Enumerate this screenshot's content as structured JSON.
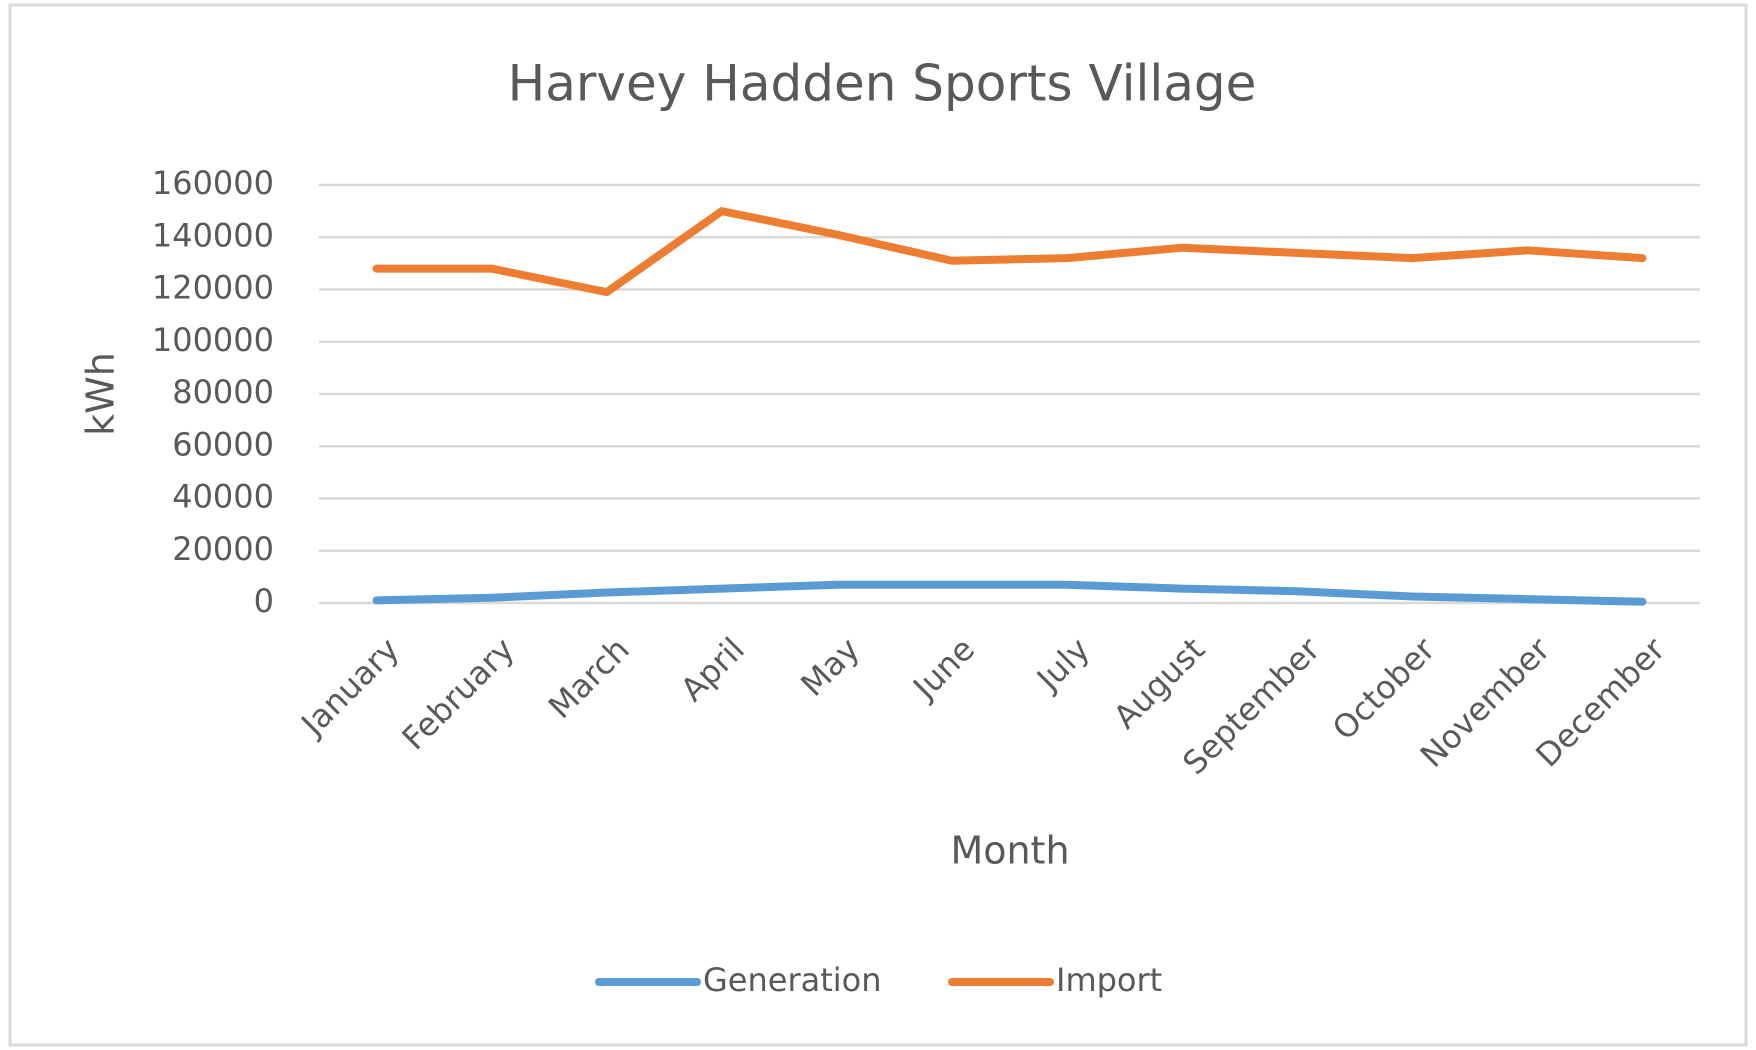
{
  "chart_data": {
    "type": "line",
    "title": "Harvey Hadden Sports Village",
    "x_label": "Month",
    "y_label": "kWh",
    "categories": [
      "January",
      "February",
      "March",
      "April",
      "May",
      "June",
      "July",
      "August",
      "September",
      "October",
      "November",
      "December"
    ],
    "series": [
      {
        "name": "Generation",
        "color": "#5b9bd5",
        "values": [
          1000,
          2000,
          4000,
          5500,
          7000,
          7000,
          7000,
          5500,
          4500,
          2500,
          1500,
          500
        ]
      },
      {
        "name": "Import",
        "color": "#ed7d31",
        "values": [
          128000,
          128000,
          119000,
          150000,
          141000,
          131000,
          132000,
          136000,
          134000,
          132000,
          135000,
          132000
        ]
      }
    ],
    "ylim": [
      0,
      160000
    ],
    "yticks": [
      0,
      20000,
      40000,
      60000,
      80000,
      100000,
      120000,
      140000,
      160000
    ],
    "grid": true,
    "legend": "bottom"
  }
}
